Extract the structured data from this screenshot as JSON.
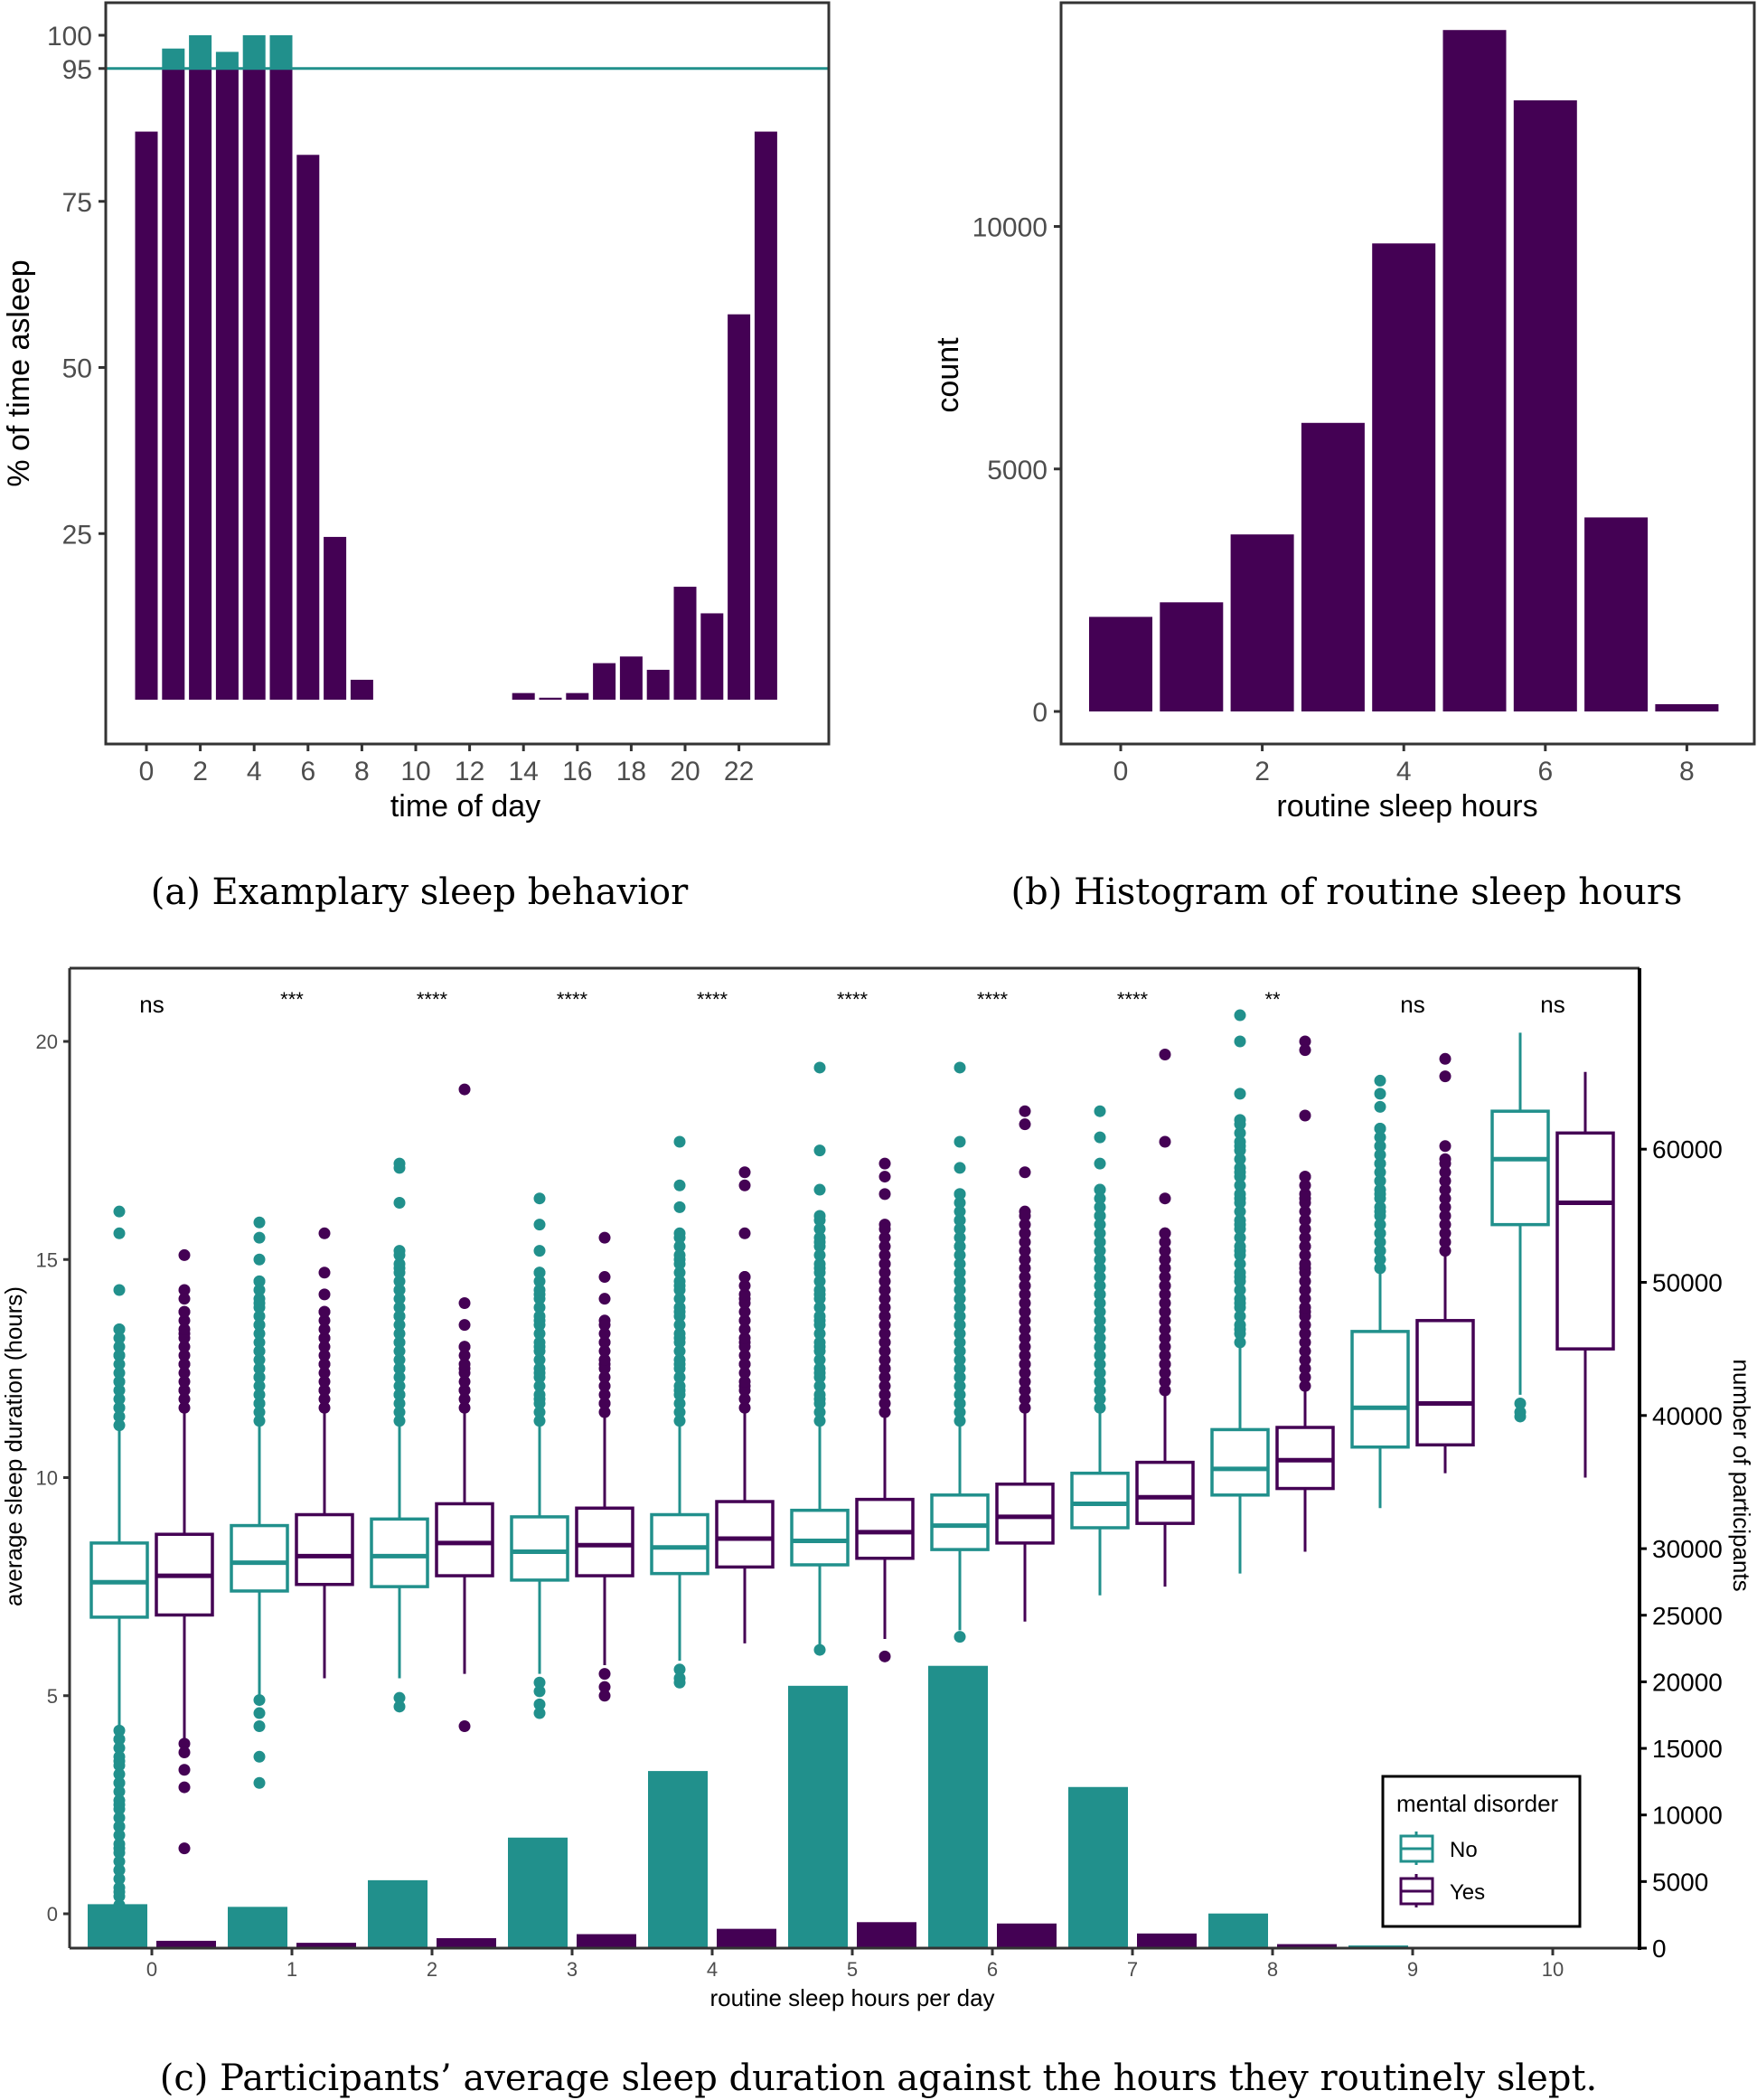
{
  "colors": {
    "teal": "#21908c",
    "purple": "#440154",
    "axis": "#333333",
    "tick_text": "#4d4d4d"
  },
  "chart_data": [
    {
      "id": "a",
      "type": "bar",
      "caption": "(a) Examplary sleep behavior",
      "title": "",
      "xlabel": "time of day",
      "ylabel": "% of time asleep",
      "x": [
        0,
        1,
        2,
        3,
        4,
        5,
        6,
        7,
        8,
        9,
        10,
        11,
        12,
        13,
        14,
        15,
        16,
        17,
        18,
        19,
        20,
        21,
        22,
        23
      ],
      "values": [
        85.5,
        98,
        100,
        97.5,
        100,
        100,
        82,
        24.5,
        3,
        0,
        0,
        0,
        0,
        0,
        1,
        0.3,
        1,
        5.5,
        6.5,
        4.5,
        17,
        13,
        58,
        85.5
      ],
      "xticks": [
        "0",
        "2",
        "4",
        "6",
        "8",
        "10",
        "12",
        "14",
        "16",
        "18",
        "20",
        "22"
      ],
      "xtick_values": [
        0,
        2,
        4,
        6,
        8,
        10,
        12,
        14,
        16,
        18,
        20,
        22
      ],
      "yticks": [
        "25",
        "50",
        "75",
        "95",
        "100"
      ],
      "ytick_values": [
        25,
        50,
        75,
        95,
        100
      ],
      "ylim": [
        -5,
        105
      ],
      "xlim": [
        -1.6,
        25
      ],
      "threshold": 95,
      "threshold_note": "portion of bars above 95 highlighted in teal"
    },
    {
      "id": "b",
      "type": "bar",
      "caption": "(b) Histogram of routine sleep hours",
      "title": "",
      "xlabel": "routine sleep hours",
      "ylabel": "count",
      "x": [
        0,
        1,
        2,
        3,
        4,
        5,
        6,
        7,
        8
      ],
      "values": [
        1950,
        2250,
        3650,
        5950,
        9650,
        14050,
        12600,
        4000,
        150
      ],
      "xticks": [
        "0",
        "2",
        "4",
        "6",
        "8"
      ],
      "xtick_values": [
        0,
        2,
        4,
        6,
        8
      ],
      "yticks": [
        "0",
        "5000",
        "10000"
      ],
      "ytick_values": [
        0,
        5000,
        10000
      ],
      "ylim": [
        -700,
        14700
      ],
      "xlim": [
        -0.88,
        8.9
      ]
    },
    {
      "id": "c",
      "type": "box+bar",
      "caption": "(c) Participants’ average sleep duration against the hours they routinely slept.",
      "xlabel": "routine sleep hours per day",
      "ylabel": "average sleep duration (hours)",
      "y2label": "number of participants",
      "categories": [
        "0",
        "1",
        "2",
        "3",
        "4",
        "5",
        "6",
        "7",
        "8",
        "9",
        "10"
      ],
      "yticks": [
        "0",
        "5",
        "10",
        "15",
        "20"
      ],
      "ytick_values": [
        0,
        5,
        10,
        15,
        20
      ],
      "ylim": [
        -0.77,
        21.7
      ],
      "y2ticks": [
        "0",
        "5000",
        "10000",
        "15000",
        "20000",
        "25000",
        "30000",
        "40000",
        "50000",
        "60000"
      ],
      "y2tick_values": [
        0,
        5000,
        10000,
        15000,
        20000,
        25000,
        30000,
        40000,
        50000,
        60000
      ],
      "y2lim": [
        0,
        69000
      ],
      "significance": [
        "ns",
        "***",
        "****",
        "****",
        "****",
        "****",
        "****",
        "****",
        "**",
        "ns",
        "ns"
      ],
      "legend": {
        "title": "mental disorder",
        "position": "bottom-right",
        "entries": [
          "No",
          "Yes"
        ]
      },
      "series": [
        {
          "name": "No",
          "color": "#21908c",
          "counts": [
            3300,
            3100,
            5100,
            8300,
            13300,
            19700,
            21200,
            12100,
            2600,
            200,
            50
          ],
          "boxes": [
            {
              "q1": 6.8,
              "median": 7.6,
              "q3": 8.5,
              "whisker_low": 4.2,
              "whisker_high": 11.2,
              "outliers": [
                16.1,
                15.6,
                14.3,
                13.4,
                12.8,
                12.2,
                11.6,
                4.0,
                3.5,
                3.0,
                2.5,
                2.0,
                1.5,
                1.0,
                0.5,
                0.2
              ]
            },
            {
              "q1": 7.4,
              "median": 8.05,
              "q3": 8.9,
              "whisker_low": 5.0,
              "whisker_high": 11.3,
              "outliers": [
                15.85,
                15.5,
                15.0,
                14.5,
                14.0,
                13.5,
                12.9,
                12.3,
                11.7,
                4.9,
                4.6,
                4.3,
                3.6,
                3.0
              ]
            },
            {
              "q1": 7.5,
              "median": 8.2,
              "q3": 9.05,
              "whisker_low": 5.4,
              "whisker_high": 11.3,
              "outliers": [
                17.2,
                17.1,
                16.3,
                15.2,
                14.8,
                14.3,
                13.7,
                13.1,
                12.5,
                11.9,
                4.95,
                4.75
              ]
            },
            {
              "q1": 7.65,
              "median": 8.3,
              "q3": 9.1,
              "whisker_low": 5.5,
              "whisker_high": 11.3,
              "outliers": [
                16.4,
                15.8,
                15.2,
                14.7,
                14.2,
                13.6,
                13.0,
                12.4,
                11.8,
                5.3,
                5.1,
                4.8,
                4.6
              ]
            },
            {
              "q1": 7.8,
              "median": 8.4,
              "q3": 9.15,
              "whisker_low": 5.8,
              "whisker_high": 11.3,
              "outliers": [
                17.7,
                16.7,
                16.2,
                15.6,
                15.0,
                14.4,
                13.8,
                13.2,
                12.6,
                12.0,
                5.6,
                5.4,
                5.3
              ]
            },
            {
              "q1": 8.0,
              "median": 8.55,
              "q3": 9.25,
              "whisker_low": 6.0,
              "whisker_high": 11.3,
              "outliers": [
                19.4,
                17.5,
                16.6,
                16.0,
                15.4,
                14.8,
                14.2,
                13.6,
                13.0,
                12.4,
                11.8,
                6.05
              ]
            },
            {
              "q1": 8.35,
              "median": 8.9,
              "q3": 9.6,
              "whisker_low": 6.5,
              "whisker_high": 11.3,
              "outliers": [
                19.4,
                17.7,
                17.1,
                16.5,
                15.9,
                15.3,
                14.7,
                14.1,
                13.5,
                12.9,
                12.3,
                11.7,
                6.35
              ]
            },
            {
              "q1": 8.85,
              "median": 9.4,
              "q3": 10.1,
              "whisker_low": 7.3,
              "whisker_high": 11.6,
              "outliers": [
                18.4,
                17.8,
                17.2,
                16.6,
                16.0,
                15.4,
                14.8,
                14.2,
                13.6,
                13.0,
                12.4
              ]
            },
            {
              "q1": 9.6,
              "median": 10.2,
              "q3": 11.1,
              "whisker_low": 7.8,
              "whisker_high": 13.1,
              "outliers": [
                20.6,
                20.0,
                18.8,
                18.2,
                17.6,
                17.0,
                16.4,
                15.8,
                15.2,
                14.6,
                14.0,
                13.4
              ]
            },
            {
              "q1": 10.7,
              "median": 11.6,
              "q3": 13.35,
              "whisker_low": 9.3,
              "whisker_high": 14.8,
              "outliers": [
                19.1,
                18.8,
                18.5,
                18.0,
                17.6,
                17.2,
                16.8,
                16.5,
                16.1,
                15.6,
                15.2
              ]
            },
            {
              "q1": 15.8,
              "median": 17.3,
              "q3": 18.4,
              "whisker_low": 11.9,
              "whisker_high": 20.2,
              "outliers": [
                11.7,
                11.5,
                11.4
              ]
            }
          ]
        },
        {
          "name": "Yes",
          "color": "#440154",
          "counts": [
            550,
            400,
            750,
            1050,
            1450,
            1950,
            1850,
            1100,
            300,
            50,
            30
          ],
          "boxes": [
            {
              "q1": 6.85,
              "median": 7.75,
              "q3": 8.7,
              "whisker_low": 4.0,
              "whisker_high": 11.6,
              "outliers": [
                15.1,
                14.3,
                14.1,
                13.8,
                13.3,
                12.6,
                12.0,
                3.9,
                3.7,
                3.3,
                2.9,
                1.5
              ]
            },
            {
              "q1": 7.55,
              "median": 8.2,
              "q3": 9.15,
              "whisker_low": 5.4,
              "whisker_high": 11.6,
              "outliers": [
                15.6,
                14.7,
                14.2,
                13.8,
                13.2,
                12.6,
                12.0
              ]
            },
            {
              "q1": 7.75,
              "median": 8.5,
              "q3": 9.4,
              "whisker_low": 5.5,
              "whisker_high": 11.6,
              "outliers": [
                18.9,
                14.0,
                13.5,
                13.0,
                12.5,
                12.0,
                4.3
              ]
            },
            {
              "q1": 7.75,
              "median": 8.45,
              "q3": 9.3,
              "whisker_low": 5.7,
              "whisker_high": 11.5,
              "outliers": [
                15.5,
                14.6,
                14.1,
                13.6,
                13.1,
                12.6,
                12.1,
                11.7,
                5.5,
                5.2,
                5.0
              ]
            },
            {
              "q1": 7.95,
              "median": 8.6,
              "q3": 9.45,
              "whisker_low": 6.2,
              "whisker_high": 11.6,
              "outliers": [
                17.0,
                16.7,
                15.6,
                14.6,
                14.1,
                13.6,
                13.1,
                12.6,
                12.1
              ]
            },
            {
              "q1": 8.15,
              "median": 8.75,
              "q3": 9.5,
              "whisker_low": 6.3,
              "whisker_high": 11.5,
              "outliers": [
                17.2,
                16.9,
                16.5,
                15.8,
                14.9,
                14.3,
                13.7,
                13.1,
                12.5,
                11.9,
                5.9
              ]
            },
            {
              "q1": 8.5,
              "median": 9.1,
              "q3": 9.85,
              "whisker_low": 6.7,
              "whisker_high": 11.6,
              "outliers": [
                18.4,
                18.1,
                17.0,
                16.1,
                15.6,
                15.0,
                14.4,
                13.8,
                13.2,
                12.6,
                12.0
              ]
            },
            {
              "q1": 8.95,
              "median": 9.55,
              "q3": 10.35,
              "whisker_low": 7.5,
              "whisker_high": 12.0,
              "outliers": [
                19.7,
                17.7,
                16.4,
                15.6,
                15.0,
                14.4,
                13.8,
                13.2,
                12.6
              ]
            },
            {
              "q1": 9.75,
              "median": 10.4,
              "q3": 11.15,
              "whisker_low": 8.3,
              "whisker_high": 12.1,
              "outliers": [
                20.0,
                19.8,
                18.3,
                16.9,
                16.4,
                15.9,
                15.3,
                14.8,
                14.3,
                13.8,
                13.3
              ]
            },
            {
              "q1": 10.75,
              "median": 11.7,
              "q3": 13.6,
              "whisker_low": 10.1,
              "whisker_high": 15.2,
              "outliers": [
                19.6,
                19.2,
                17.6,
                17.3
              ]
            },
            {
              "q1": 12.95,
              "median": 16.3,
              "q3": 17.9,
              "whisker_low": 10.0,
              "whisker_high": 19.3,
              "outliers": []
            }
          ]
        }
      ]
    }
  ]
}
